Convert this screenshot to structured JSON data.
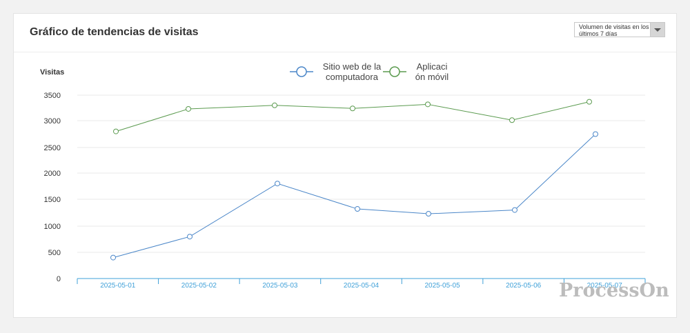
{
  "header": {
    "title": "Gráfico de tendencias de visitas",
    "dropdown_label": "Volumen de visitas en los últimos 7 días"
  },
  "watermark": "ProcessOn",
  "chart_data": {
    "type": "line",
    "title": "Gráfico de tendencias de visitas",
    "ylabel": "Visitas",
    "xlabel": "",
    "categories": [
      "2025-05-01",
      "2025-05-02",
      "2025-05-03",
      "2025-05-04",
      "2025-05-05",
      "2025-05-06",
      "2025-05-07"
    ],
    "y_ticks": [
      0,
      500,
      1000,
      1500,
      2000,
      2500,
      3000,
      3500
    ],
    "ylim": [
      0,
      3500
    ],
    "grid": true,
    "legend": "top-center",
    "series": [
      {
        "name": "Sitio web de la computadora",
        "color": "#4a86c8",
        "values": [
          400,
          800,
          1800,
          1320,
          1230,
          1300,
          2750
        ]
      },
      {
        "name": "Aplicación móvil",
        "color": "#5a9a4e",
        "values": [
          2800,
          3230,
          3300,
          3240,
          3320,
          3010,
          3370
        ]
      }
    ]
  }
}
